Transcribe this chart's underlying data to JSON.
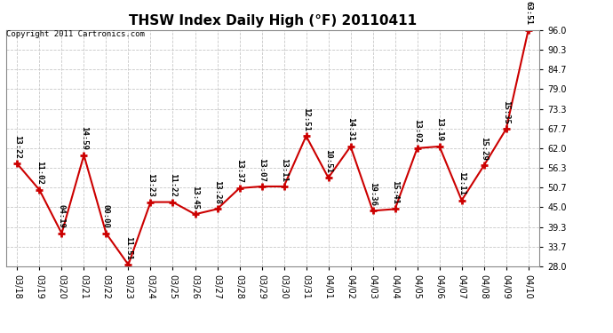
{
  "title": "THSW Index Daily High (°F) 20110411",
  "copyright": "Copyright 2011 Cartronics.com",
  "x_labels": [
    "03/18",
    "03/19",
    "03/20",
    "03/21",
    "03/22",
    "03/23",
    "03/24",
    "03/25",
    "03/26",
    "03/27",
    "03/28",
    "03/29",
    "03/30",
    "03/31",
    "04/01",
    "04/02",
    "04/03",
    "04/04",
    "04/05",
    "04/06",
    "04/07",
    "04/08",
    "04/09",
    "04/10"
  ],
  "y_values": [
    57.5,
    50.0,
    37.5,
    60.0,
    37.5,
    28.5,
    46.5,
    46.5,
    43.0,
    44.5,
    50.5,
    51.0,
    51.0,
    65.5,
    53.5,
    62.5,
    44.0,
    44.5,
    62.0,
    62.5,
    47.0,
    57.0,
    67.5,
    96.0
  ],
  "point_labels": [
    "13:22",
    "11:02",
    "04:19",
    "14:59",
    "00:00",
    "11:51",
    "13:23",
    "11:22",
    "13:45",
    "13:28",
    "13:37",
    "13:07",
    "13:11",
    "12:51",
    "10:51",
    "14:31",
    "19:36",
    "15:41",
    "13:02",
    "13:19",
    "12:11",
    "15:29",
    "15:35",
    "63:51"
  ],
  "ylim": [
    28.0,
    96.0
  ],
  "yticks": [
    28.0,
    33.7,
    39.3,
    45.0,
    50.7,
    56.3,
    62.0,
    67.7,
    73.3,
    79.0,
    84.7,
    90.3,
    96.0
  ],
  "line_color": "#cc0000",
  "marker_color": "#cc0000",
  "background_color": "#ffffff",
  "grid_color": "#c8c8c8",
  "title_fontsize": 11,
  "label_fontsize": 6.5,
  "tick_fontsize": 7,
  "copyright_fontsize": 6.5
}
